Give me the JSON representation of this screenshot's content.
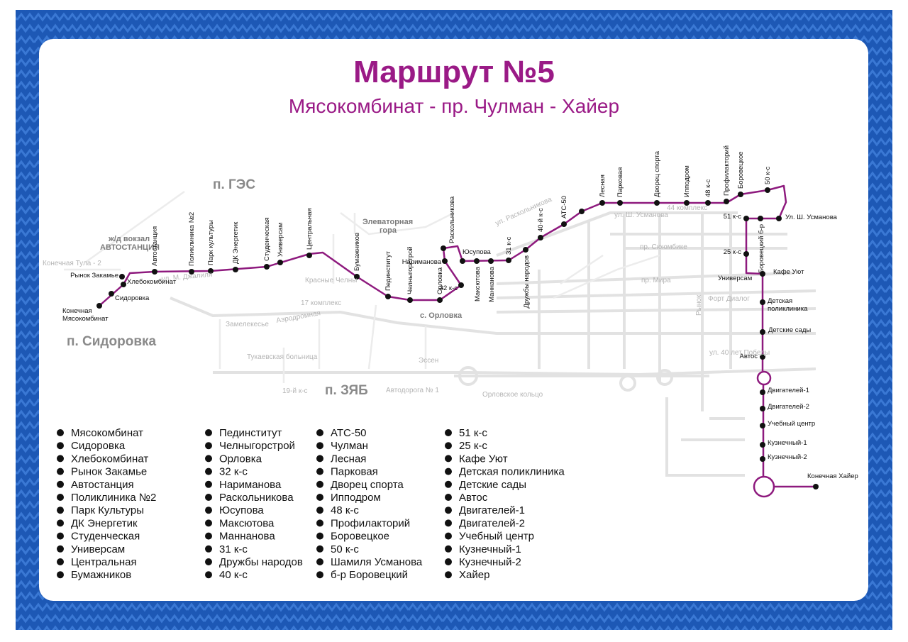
{
  "header": {
    "title": "Маршрут №5",
    "subtitle": "Мясокомбинат -  пр. Чулман - Хайер"
  },
  "map": {
    "districts": [
      "п. ГЭС",
      "п. Сидоровка",
      "п. ЗЯБ"
    ],
    "places": [
      "Элеваторная",
      "гора",
      "с. Орловка",
      "ж/д вокзал",
      "АВТОСТАНЦИЯ"
    ],
    "streets": [
      "ул. Раскольникова",
      "ул. М. Джалиля",
      "ул. Ш. Усманова",
      "пр. Сююмбике",
      "пр. Мира",
      "ул. 40 лет Победы",
      "Автодорога № 1",
      "Орловское кольцо",
      "Тукаевская больница",
      "Замелекесье",
      "Аэродромная",
      "Эссен",
      "19-й к-с",
      "Конечная Тула - 2",
      "Форт Диалог",
      "Красные Челны",
      "17 комплекс",
      "Рынок",
      "44 комплекс"
    ],
    "stops": [
      [
        "Конечная",
        "Мясокомбинат"
      ],
      "Сидоровка",
      "Хлебокомбинат",
      "Рынок Закамье",
      "Автостанция",
      "Поликлиника №2",
      "Парк культуры",
      "ДК Энергетик",
      "Студенческая",
      "Универсам",
      "Центральная",
      "Бумажников",
      "Пединститут",
      "Челныгорстрой",
      "Орловка",
      "32 к-с",
      "Нариманова",
      "Раскольникова",
      "Юсупова",
      "Максютова",
      "Маннанова",
      "31 к-с",
      "Дружбы народов",
      "40-й к-с",
      "АТС-50",
      "Лесная",
      "Парковая",
      "Дворец спорта",
      "Ипподром",
      "48 к-с",
      "Профилакторий",
      "Боровецкое",
      "50 к-с",
      "Ул. Ш. Усманова",
      "Боровецкий б-р",
      "51 к-с",
      "25 к-с",
      "Универсам",
      "Кафе Уют",
      [
        "Детская",
        "поликлиника"
      ],
      "Детские сады",
      "Автос",
      "Двигателей-1",
      "Двигателей-2",
      "Учебный центр",
      "Кузнечный-1",
      "Кузнечный-2",
      "Конечная Хайер"
    ]
  },
  "stop_list": {
    "columns": [
      [
        "Мясокомбинат",
        "Сидоровка",
        "Хлебокомбинат",
        "Рынок Закамье",
        "Автостанция",
        "Поликлиника №2",
        "Парк Культуры",
        "ДК Энергетик",
        "Студенческая",
        "Универсам",
        "Центральная",
        "Бумажников"
      ],
      [
        "Пединститут",
        "Челныгорстрой",
        "Орловка",
        "32 к-с",
        "Нариманова",
        "Раскольникова",
        "Юсупова",
        "Максютова",
        "Маннанова",
        "31 к-с",
        "Дружбы народов",
        "40 к-с"
      ],
      [
        "АТС-50",
        "Чулман",
        "Лесная",
        "Парковая",
        "Дворец спорта",
        "Ипподром",
        "48 к-с",
        "Профилакторий",
        "Боровецкое",
        "50 к-с",
        "Шамиля Усманова",
        "б-р Боровецкий"
      ],
      [
        "51 к-с",
        "25 к-с",
        "Кафе Уют",
        "Детская поликлиника",
        "Детские сады",
        "Автос",
        "Двигателей-1",
        "Двигателей-2",
        "Учебный центр",
        "Кузнечный-1",
        "Кузнечный-2",
        "Хайер"
      ]
    ]
  }
}
